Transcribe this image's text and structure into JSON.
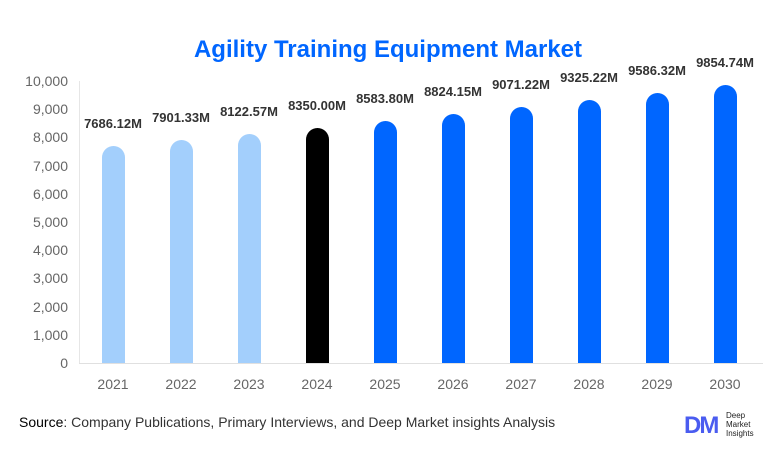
{
  "title": "Agility Training Equipment Market",
  "source_label": "Source",
  "source_text": ": Company Publications, Primary Interviews, and Deep Market insights Analysis",
  "logo": {
    "mark": "DM",
    "line1": "Deep",
    "line2": "Market",
    "line3": "Insights"
  },
  "colors": {
    "historical": "#a3cffc",
    "base_year": "#000000",
    "forecast": "#0066ff",
    "title": "#0066ff"
  },
  "y_ticks": [
    "10,000",
    "9,000",
    "8,000",
    "7,000",
    "6,000",
    "5,000",
    "4,000",
    "3,000",
    "2,000",
    "1,000",
    "0"
  ],
  "chart_data": {
    "type": "bar",
    "title": "Agility Training Equipment Market",
    "xlabel": "",
    "ylabel": "",
    "ylim": [
      0,
      10000
    ],
    "grid": false,
    "legend": null,
    "categories": [
      "2021",
      "2022",
      "2023",
      "2024",
      "2025",
      "2026",
      "2027",
      "2028",
      "2029",
      "2030"
    ],
    "values": [
      7686.12,
      7901.33,
      8122.57,
      8350.0,
      8583.8,
      8824.15,
      9071.22,
      9325.22,
      9586.32,
      9854.74
    ],
    "labels": [
      "7686.12M",
      "7901.33M",
      "8122.57M",
      "8350.00M",
      "8583.80M",
      "8824.15M",
      "9071.22M",
      "9325.22M",
      "9586.32M",
      "9854.74M"
    ],
    "bar_colors": [
      "#a3cffc",
      "#a3cffc",
      "#a3cffc",
      "#000000",
      "#0066ff",
      "#0066ff",
      "#0066ff",
      "#0066ff",
      "#0066ff",
      "#0066ff"
    ]
  }
}
